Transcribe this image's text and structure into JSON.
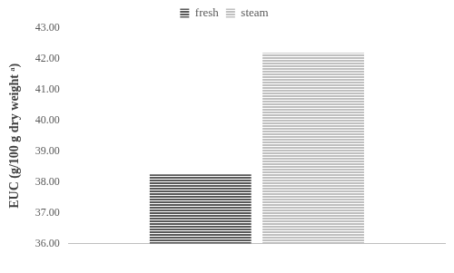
{
  "chart_data": {
    "type": "bar",
    "y_label": "EUC (g/100 g dry weight ᵃ)",
    "categories": [
      null
    ],
    "series": [
      {
        "name": "fresh",
        "color": "#595959",
        "values": [
          38.25
        ]
      },
      {
        "name": "steam",
        "color": "#bfbfbf",
        "values": [
          42.2
        ]
      }
    ],
    "ylim": [
      36,
      43
    ],
    "yticks": [
      {
        "value": 36,
        "label": "36.00"
      },
      {
        "value": 37,
        "label": "37.00"
      },
      {
        "value": 38,
        "label": "38.00"
      },
      {
        "value": 39,
        "label": "39.00"
      },
      {
        "value": 40,
        "label": "40.00"
      },
      {
        "value": 41,
        "label": "41.00"
      },
      {
        "value": 42,
        "label": "42.00"
      },
      {
        "value": 43,
        "label": "43.00"
      }
    ],
    "grid": false,
    "legend": "top"
  }
}
